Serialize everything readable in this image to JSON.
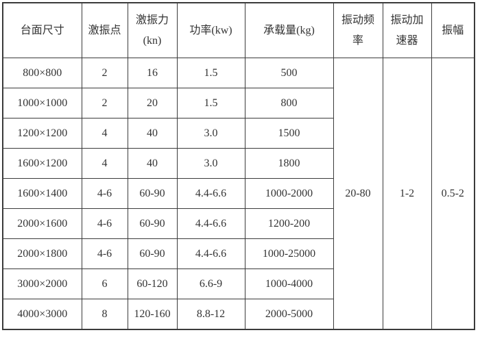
{
  "table": {
    "columns": [
      {
        "label": "台面尺寸"
      },
      {
        "label": "激振点"
      },
      {
        "label": "激振力\n(kn)"
      },
      {
        "label": "功率(kw)"
      },
      {
        "label": "承载量(kg)"
      },
      {
        "label": "振动频\n率"
      },
      {
        "label": "振动加\n速器"
      },
      {
        "label": "振幅"
      }
    ],
    "rows": [
      [
        "800×800",
        "2",
        "16",
        "1.5",
        "500"
      ],
      [
        "1000×1000",
        "2",
        "20",
        "1.5",
        "800"
      ],
      [
        "1200×1200",
        "4",
        "40",
        "3.0",
        "1500"
      ],
      [
        "1600×1200",
        "4",
        "40",
        "3.0",
        "1800"
      ],
      [
        "1600×1400",
        "4-6",
        "60-90",
        "4.4-6.6",
        "1000-2000"
      ],
      [
        "2000×1600",
        "4-6",
        "60-90",
        "4.4-6.6",
        "1200-200"
      ],
      [
        "2000×1800",
        "4-6",
        "60-90",
        "4.4-6.6",
        "1000-25000"
      ],
      [
        "3000×2000",
        "6",
        "60-120",
        "6.6-9",
        "1000-4000"
      ],
      [
        "4000×3000",
        "8",
        "120-160",
        "8.8-12",
        "2000-5000"
      ]
    ],
    "merged": [
      "20-80",
      "1-2",
      "0.5-2"
    ],
    "colors": {
      "border": "#3a3a3a",
      "text": "#333333",
      "background": "#ffffff"
    }
  }
}
